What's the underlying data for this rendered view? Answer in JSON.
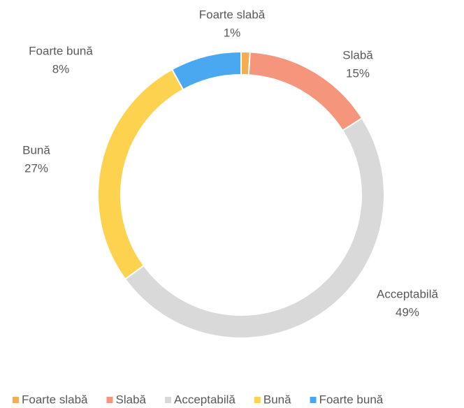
{
  "chart_data": {
    "type": "donut",
    "categories": [
      "Foarte slabă",
      "Slabă",
      "Acceptabilă",
      "Bună",
      "Foarte bună"
    ],
    "values": [
      1,
      15,
      49,
      27,
      8
    ],
    "value_labels": [
      "1%",
      "15%",
      "49%",
      "27%",
      "8%"
    ],
    "colors": [
      "#f4ac55",
      "#f4957c",
      "#d9d9d9",
      "#fdd24f",
      "#4aa8f0"
    ],
    "legend": "bottom"
  }
}
